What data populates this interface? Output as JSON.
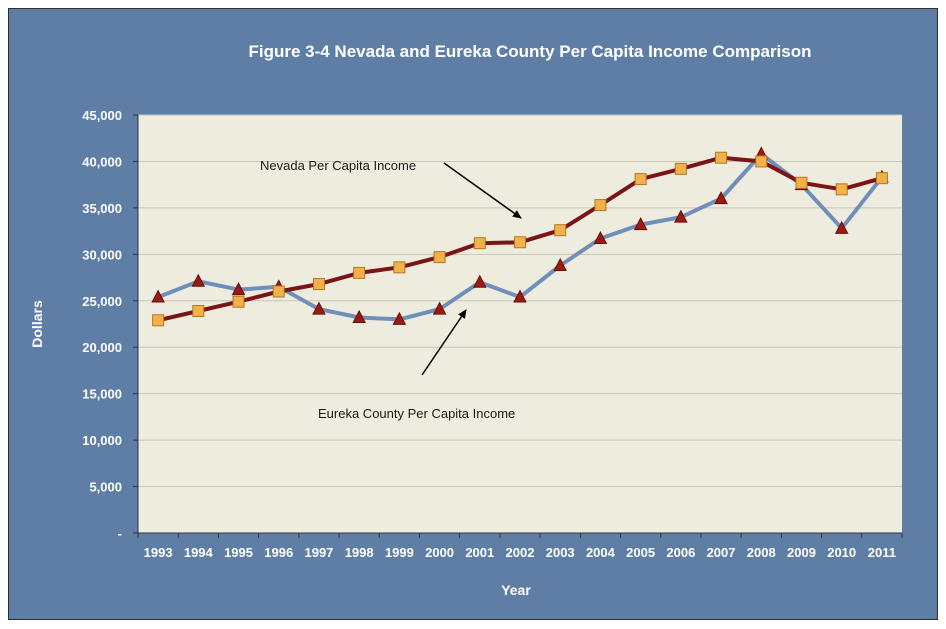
{
  "chart_data": {
    "type": "line",
    "title": "Figure 3-4 Nevada and Eureka County Per Capita Income Comparison",
    "xlabel": "Year",
    "ylabel": "Dollars",
    "ylim": [
      0,
      45000
    ],
    "y_ticks": [
      0,
      5000,
      10000,
      15000,
      20000,
      25000,
      30000,
      35000,
      40000,
      45000
    ],
    "y_tick_labels": [
      "-",
      "5,000",
      "10,000",
      "15,000",
      "20,000",
      "25,000",
      "30,000",
      "35,000",
      "40,000",
      "45,000"
    ],
    "categories": [
      "1993",
      "1994",
      "1995",
      "1996",
      "1997",
      "1998",
      "1999",
      "2000",
      "2001",
      "2002",
      "2003",
      "2004",
      "2005",
      "2006",
      "2007",
      "2008",
      "2009",
      "2010",
      "2011"
    ],
    "grid": true,
    "series": [
      {
        "name": "Nevada Per Capita Income",
        "color": "#7b1416",
        "marker": "square",
        "marker_color": "#f2b14a",
        "values": [
          22900,
          23900,
          24900,
          26000,
          26800,
          28000,
          28600,
          29700,
          31200,
          31300,
          32600,
          35300,
          38100,
          39200,
          40400,
          40000,
          37700,
          37000,
          38200
        ]
      },
      {
        "name": "Eureka County Per Capita Income",
        "color": "#6f8fba",
        "marker": "triangle",
        "marker_color": "#9a1b12",
        "values": [
          25400,
          27100,
          26200,
          26500,
          24100,
          23200,
          23000,
          24100,
          27000,
          25400,
          28800,
          31700,
          33200,
          34000,
          36000,
          40800,
          37500,
          32800,
          38300
        ]
      }
    ],
    "annotations": [
      {
        "text": "Nevada Per Capita Income",
        "series": "Nevada Per Capita Income"
      },
      {
        "text": "Eureka County Per Capita Income",
        "series": "Eureka County Per Capita Income"
      }
    ],
    "colors": {
      "frame": "#5e7ea6",
      "plot_bg": "#eeecdf",
      "gridline": "#c8c6b8"
    }
  }
}
